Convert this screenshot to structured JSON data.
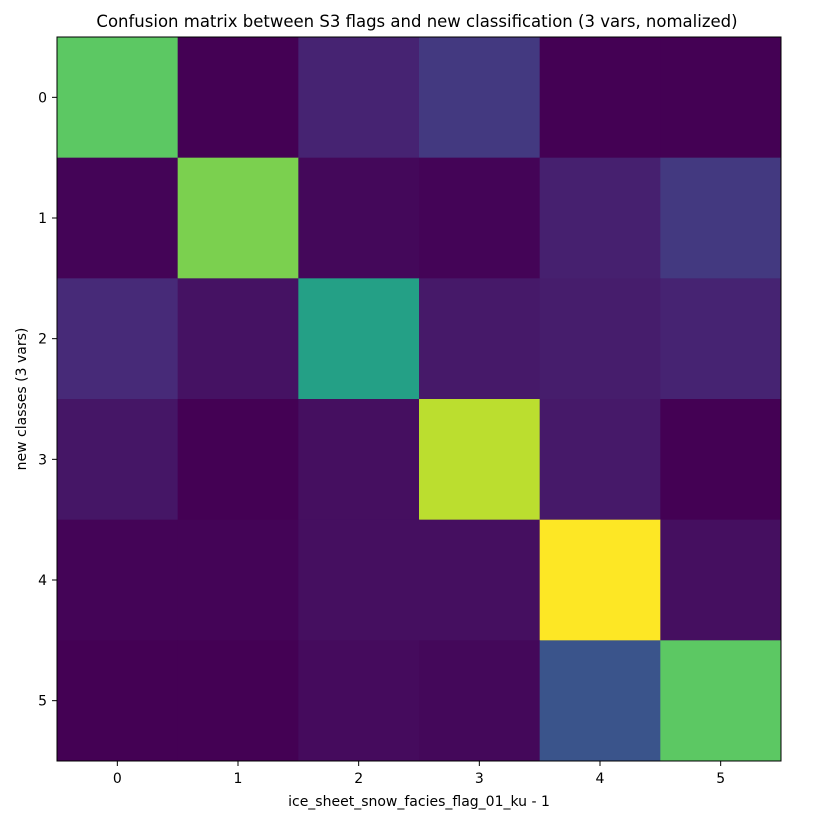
{
  "chart_data": {
    "type": "heatmap",
    "title": "Confusion matrix between S3 flags and new classification (3 vars, nomalized)",
    "xlabel": "ice_sheet_snow_facies_flag_01_ku - 1",
    "ylabel": "new classes (3 vars)",
    "x_categories": [
      "0",
      "1",
      "2",
      "3",
      "4",
      "5"
    ],
    "y_categories": [
      "0",
      "1",
      "2",
      "3",
      "4",
      "5"
    ],
    "colormap": "viridis",
    "vmin": 0,
    "vmax": 1,
    "grid": false,
    "values": [
      [
        0.75,
        0.0,
        0.1,
        0.17,
        0.0,
        0.0
      ],
      [
        0.01,
        0.8,
        0.02,
        0.01,
        0.09,
        0.17
      ],
      [
        0.12,
        0.05,
        0.57,
        0.07,
        0.08,
        0.1
      ],
      [
        0.06,
        0.0,
        0.04,
        0.9,
        0.07,
        0.0
      ],
      [
        0.01,
        0.01,
        0.04,
        0.04,
        1.0,
        0.04
      ],
      [
        0.0,
        0.0,
        0.03,
        0.02,
        0.26,
        0.75
      ]
    ]
  }
}
